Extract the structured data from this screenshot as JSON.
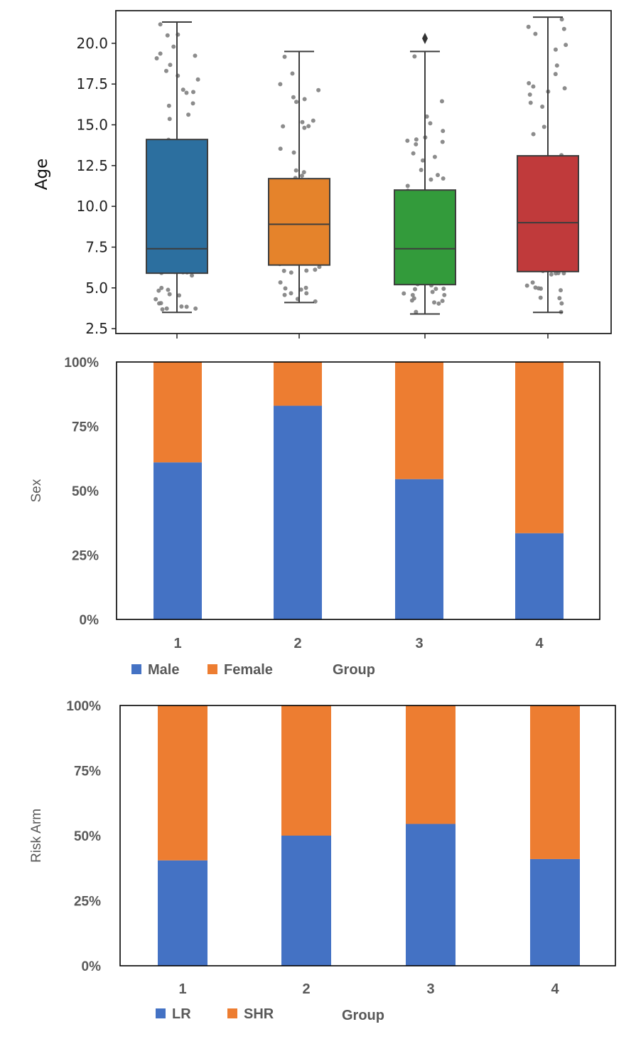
{
  "chart_data": [
    {
      "type": "box",
      "ylabel": "Age",
      "ylim": [
        2.2,
        22.0
      ],
      "yticks": [
        "2.5",
        "5.0",
        "7.5",
        "10.0",
        "12.5",
        "15.0",
        "17.5",
        "20.0"
      ],
      "categories": [
        "1",
        "2",
        "3",
        "4"
      ],
      "boxes": [
        {
          "group": "1",
          "whisker_low": 3.5,
          "q1": 5.9,
          "median": 7.4,
          "q3": 14.1,
          "whisker_high": 21.3,
          "color": "#2c6f9f",
          "outliers": []
        },
        {
          "group": "2",
          "whisker_low": 4.1,
          "q1": 6.4,
          "median": 8.9,
          "q3": 11.7,
          "whisker_high": 19.5,
          "color": "#e5832b",
          "outliers": []
        },
        {
          "group": "3",
          "whisker_low": 3.4,
          "q1": 5.2,
          "median": 7.4,
          "q3": 11.0,
          "whisker_high": 19.5,
          "color": "#339b3b",
          "outliers": [
            20.3
          ]
        },
        {
          "group": "4",
          "whisker_low": 3.5,
          "q1": 6.0,
          "median": 9.0,
          "q3": 13.1,
          "whisker_high": 21.6,
          "color": "#c03a3b",
          "outliers": []
        }
      ]
    },
    {
      "type": "bar",
      "stacked": "percent",
      "ylabel": "Sex",
      "xlabel": "Group",
      "yticks": [
        "0%",
        "25%",
        "50%",
        "75%",
        "100%"
      ],
      "categories": [
        "1",
        "2",
        "3",
        "4"
      ],
      "series": [
        {
          "name": "Male",
          "color": "#4472c4",
          "values": [
            61,
            83,
            54.5,
            33.5
          ]
        },
        {
          "name": "Female",
          "color": "#ed7d31",
          "values": [
            39,
            17,
            45.5,
            66.5
          ]
        }
      ]
    },
    {
      "type": "bar",
      "stacked": "percent",
      "ylabel": "Risk Arm",
      "xlabel": "Group",
      "yticks": [
        "0%",
        "25%",
        "50%",
        "75%",
        "100%"
      ],
      "categories": [
        "1",
        "2",
        "3",
        "4"
      ],
      "series": [
        {
          "name": "LR",
          "color": "#4472c4",
          "values": [
            40.5,
            50,
            54.5,
            41
          ]
        },
        {
          "name": "SHR",
          "color": "#ed7d31",
          "values": [
            59.5,
            50,
            45.5,
            59
          ]
        }
      ]
    }
  ]
}
